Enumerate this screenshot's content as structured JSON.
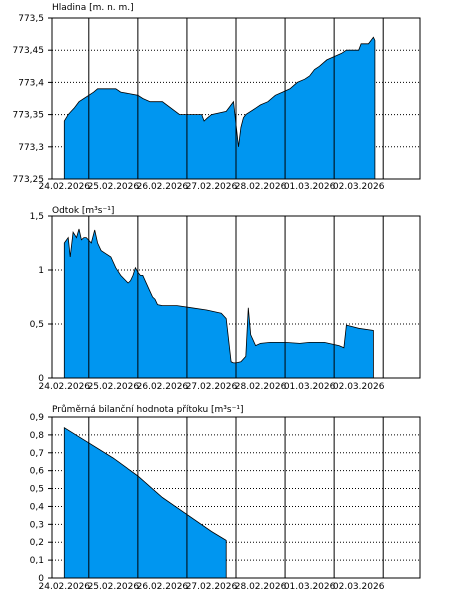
{
  "chart_data": [
    {
      "type": "area",
      "title": "Hladina [m. n. m.]",
      "xlabel": "",
      "ylabel": "",
      "x_ticks": [
        "24.02.2026",
        "25.02.2026",
        "26.02.2026",
        "27.02.2026",
        "28.02.2026",
        "01.03.2026",
        "02.03.2026"
      ],
      "x_range_days": [
        -0.25,
        7.25
      ],
      "ylim": [
        773.25,
        773.5
      ],
      "y_ticks": [
        "773,25",
        "773,3",
        "773,35",
        "773,4",
        "773,45",
        "773,5"
      ],
      "grid": true,
      "color": "#0096f0",
      "x": [
        0,
        0.08,
        0.14,
        0.2,
        0.3,
        0.4,
        0.5,
        0.6,
        0.68,
        1.0,
        1.05,
        1.15,
        1.5,
        1.6,
        1.75,
        2.0,
        2.35,
        2.8,
        2.85,
        2.92,
        3.0,
        3.3,
        3.45,
        3.5,
        3.55,
        3.6,
        3.65,
        3.7,
        3.9,
        4.0,
        4.15,
        4.3,
        4.45,
        4.6,
        4.75,
        4.9,
        5.0,
        5.1,
        5.2,
        5.35,
        5.5,
        5.65,
        5.75,
        6.0,
        6.05,
        6.2,
        6.3,
        6.33
      ],
      "y": [
        773.34,
        773.35,
        773.355,
        773.36,
        773.37,
        773.375,
        773.38,
        773.385,
        773.39,
        773.39,
        773.39,
        773.385,
        773.38,
        773.375,
        773.37,
        773.37,
        773.35,
        773.35,
        773.34,
        773.345,
        773.35,
        773.355,
        773.37,
        773.335,
        773.3,
        773.33,
        773.345,
        773.35,
        773.36,
        773.365,
        773.37,
        773.38,
        773.385,
        773.39,
        773.4,
        773.405,
        773.41,
        773.42,
        773.425,
        773.435,
        773.44,
        773.445,
        773.45,
        773.45,
        773.46,
        773.46,
        773.47,
        773.465
      ]
    },
    {
      "type": "area",
      "title": "Odtok [m³s⁻¹]",
      "xlabel": "",
      "ylabel": "",
      "x_ticks": [
        "24.02.2026",
        "25.02.2026",
        "26.02.2026",
        "27.02.2026",
        "28.02.2026",
        "01.03.2026",
        "02.03.2026"
      ],
      "x_range_days": [
        -0.25,
        7.25
      ],
      "ylim": [
        0,
        1.5
      ],
      "y_ticks": [
        "0",
        "0,5",
        "1",
        "1,5"
      ],
      "grid": true,
      "color": "#0096f0",
      "x": [
        0,
        0.08,
        0.12,
        0.18,
        0.25,
        0.3,
        0.35,
        0.4,
        0.45,
        0.55,
        0.62,
        0.68,
        0.75,
        0.85,
        0.95,
        1.05,
        1.15,
        1.3,
        1.35,
        1.4,
        1.45,
        1.5,
        1.55,
        1.6,
        1.75,
        1.8,
        1.85,
        1.9,
        2.0,
        2.3,
        2.6,
        2.9,
        3.2,
        3.3,
        3.4,
        3.45,
        3.5,
        3.6,
        3.7,
        3.75,
        3.8,
        3.9,
        4.0,
        4.2,
        4.5,
        4.8,
        5.0,
        5.3,
        5.6,
        5.7,
        5.75,
        6.0,
        6.3
      ],
      "y": [
        1.25,
        1.3,
        1.12,
        1.35,
        1.3,
        1.38,
        1.28,
        1.3,
        1.3,
        1.25,
        1.37,
        1.25,
        1.18,
        1.15,
        1.12,
        1.02,
        0.95,
        0.88,
        0.9,
        0.95,
        1.02,
        0.98,
        0.95,
        0.95,
        0.8,
        0.75,
        0.73,
        0.68,
        0.67,
        0.67,
        0.65,
        0.63,
        0.6,
        0.55,
        0.15,
        0.14,
        0.14,
        0.15,
        0.2,
        0.65,
        0.4,
        0.3,
        0.32,
        0.33,
        0.33,
        0.32,
        0.33,
        0.33,
        0.3,
        0.28,
        0.49,
        0.46,
        0.44
      ]
    },
    {
      "type": "area",
      "title": "Průměrná bilanční hodnota přítoku [m³s⁻¹]",
      "xlabel": "",
      "ylabel": "",
      "x_ticks": [
        "24.02.2026",
        "25.02.2026",
        "26.02.2026",
        "27.02.2026",
        "28.02.2026",
        "01.03.2026",
        "02.03.2026"
      ],
      "x_range_days": [
        -0.25,
        7.25
      ],
      "ylim": [
        0,
        0.9
      ],
      "y_ticks": [
        "0",
        "0,1",
        "0,2",
        "0,3",
        "0,4",
        "0,5",
        "0,6",
        "0,7",
        "0,8",
        "0,9"
      ],
      "grid": true,
      "color": "#0096f0",
      "x": [
        0,
        1.0,
        1.5,
        2.0,
        3.0,
        3.3
      ],
      "y": [
        0.84,
        0.67,
        0.57,
        0.45,
        0.26,
        0.21
      ]
    }
  ]
}
